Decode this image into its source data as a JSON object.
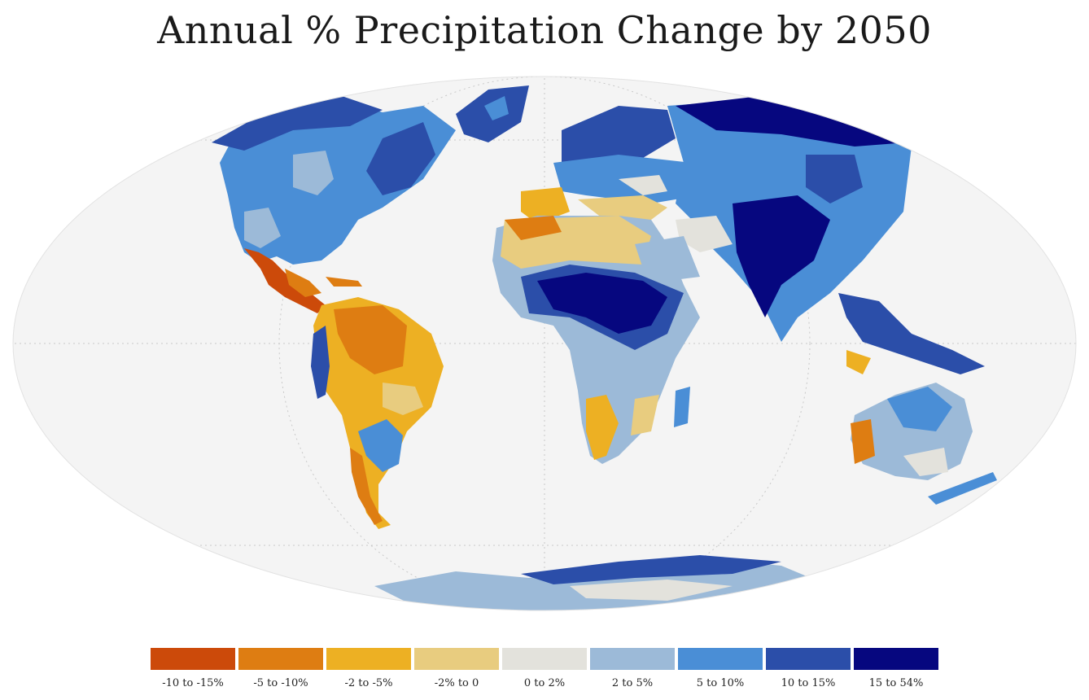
{
  "title": "Annual % Precipitation Change by 2050",
  "colors": {
    "ocean": "#f4f4f4",
    "graticule": "#c9c9c9",
    "extreme_dry": "#cc4a0a",
    "very_dry": "#de7d12",
    "dry": "#edb023",
    "slight_dry": "#e8cc7f",
    "neutral": "#e3e2dc",
    "slight_wet": "#9cbad8",
    "wet": "#4a8ed6",
    "very_wet": "#2b4ea9",
    "extreme_wet": "#06077f"
  },
  "legend": [
    {
      "label": "-10 to -15%",
      "color": "#cc4a0a"
    },
    {
      "label": "-5 to -10%",
      "color": "#de7d12"
    },
    {
      "label": "-2 to -5%",
      "color": "#edb023"
    },
    {
      "label": "-2% to 0",
      "color": "#e8cc7f"
    },
    {
      "label": "0 to 2%",
      "color": "#e3e2dc"
    },
    {
      "label": "2 to 5%",
      "color": "#9cbad8"
    },
    {
      "label": "5 to 10%",
      "color": "#4a8ed6"
    },
    {
      "label": "10 to 15%",
      "color": "#2b4ea9"
    },
    {
      "label": "15 to 54%",
      "color": "#06077f"
    }
  ]
}
